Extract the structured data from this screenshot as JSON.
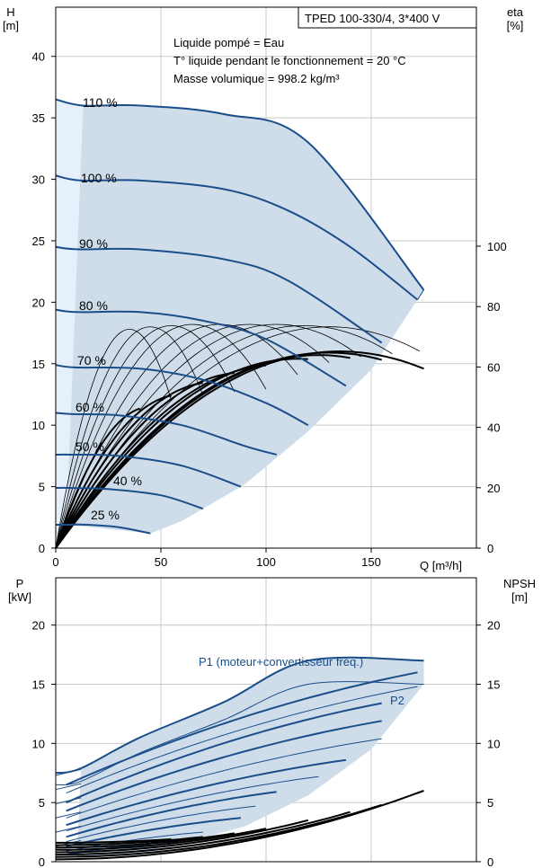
{
  "chart_data": [
    {
      "type": "line",
      "title": "TPED 100-330/4, 3*400 V",
      "info_lines": [
        "Liquide pompé = Eau",
        "T° liquide pendant le fonctionnement = 20 °C",
        "Masse volumique = 998.2 kg/m³"
      ],
      "ylabel": "H",
      "yunit": "[m]",
      "y2label": "eta",
      "y2unit": "[%]",
      "xlabel": "Q [m³/h]",
      "xlim": [
        0,
        200
      ],
      "ylim": [
        0,
        44
      ],
      "y2lim": [
        0,
        100
      ],
      "x_ticks": [
        "0",
        "50",
        "100",
        "150"
      ],
      "y_ticks": [
        "0",
        "5",
        "10",
        "15",
        "20",
        "25",
        "30",
        "35",
        "40"
      ],
      "y2_ticks": [
        "0",
        "20",
        "40",
        "60",
        "80",
        "100"
      ],
      "grid": true,
      "colors": {
        "curve": "#1a4e8a",
        "region": "#cfdcea",
        "region_light": "#e6f0fa",
        "eta": "#000000"
      },
      "series": [
        {
          "name": "110 %",
          "x": [
            0,
            13,
            40,
            80,
            120,
            175
          ],
          "y": [
            36.5,
            36.0,
            36.0,
            35.3,
            33.0,
            21.0
          ]
        },
        {
          "name": "100 %",
          "x": [
            0,
            12,
            40,
            80,
            110,
            140,
            172
          ],
          "y": [
            30.3,
            29.9,
            29.9,
            29.2,
            27.5,
            24.5,
            20.2
          ]
        },
        {
          "name": "90 %",
          "x": [
            0,
            11,
            40,
            80,
            110,
            155
          ],
          "y": [
            24.5,
            24.3,
            24.3,
            23.5,
            21.8,
            16.7
          ]
        },
        {
          "name": "80 %",
          "x": [
            0,
            10,
            40,
            70,
            100,
            138
          ],
          "y": [
            19.4,
            19.2,
            19.2,
            18.5,
            17.0,
            13.2
          ]
        },
        {
          "name": "70 %",
          "x": [
            0,
            9,
            40,
            70,
            100,
            120
          ],
          "y": [
            14.9,
            14.7,
            14.6,
            13.7,
            11.8,
            10.0
          ]
        },
        {
          "name": "60 %",
          "x": [
            0,
            8,
            30,
            60,
            90,
            105
          ],
          "y": [
            11.0,
            10.9,
            10.8,
            10.0,
            8.3,
            7.6
          ]
        },
        {
          "name": "50 %",
          "x": [
            0,
            7,
            30,
            60,
            88
          ],
          "y": [
            7.6,
            7.6,
            7.5,
            6.7,
            5.0
          ]
        },
        {
          "name": "40 %",
          "x": [
            0,
            6,
            25,
            50,
            70
          ],
          "y": [
            4.9,
            4.9,
            4.8,
            4.3,
            3.2
          ]
        },
        {
          "name": "25 %",
          "x": [
            0,
            5,
            15,
            30,
            45
          ],
          "y": [
            1.9,
            1.9,
            1.9,
            1.7,
            1.2
          ]
        }
      ]
    },
    {
      "type": "line",
      "ylabel": "P",
      "yunit": "[kW]",
      "y2label": "NPSH",
      "y2unit": "[m]",
      "xlim": [
        0,
        200
      ],
      "ylim": [
        0,
        24
      ],
      "y2lim": [
        0,
        24
      ],
      "y_ticks": [
        "0",
        "5",
        "10",
        "15",
        "20"
      ],
      "y2_ticks": [
        "0",
        "5",
        "10",
        "15",
        "20"
      ],
      "grid": true,
      "annotations": [
        "P1 (moteur+convertisseur fréq.)",
        "P2"
      ],
      "series": [
        {
          "name": "P1 (moteur+convertisseur fréq.)",
          "x": [
            0,
            12,
            40,
            80,
            120,
            175
          ],
          "y": [
            7.5,
            7.9,
            10.5,
            13.5,
            17.0,
            17.0
          ]
        },
        {
          "name": "P2",
          "x": [
            0,
            12,
            40,
            80,
            120,
            175
          ],
          "y": [
            6.5,
            6.8,
            9.2,
            12.0,
            15.0,
            15.0
          ]
        }
      ]
    }
  ]
}
